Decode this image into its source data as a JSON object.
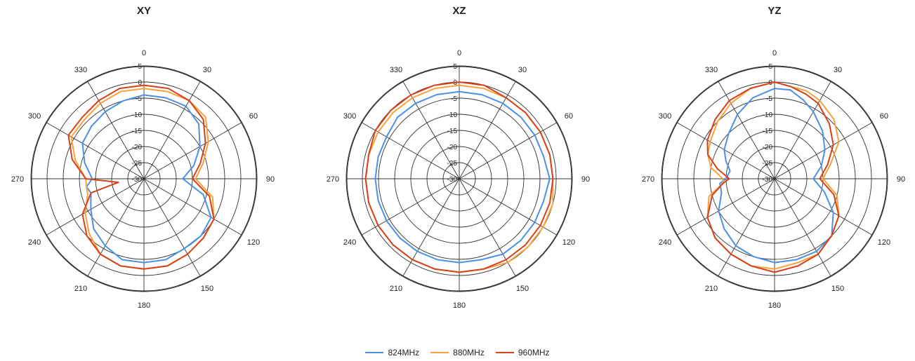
{
  "legend": [
    {
      "name": "824MHz",
      "color": "#4a90e8"
    },
    {
      "name": "880MHz",
      "color": "#f5a33a"
    },
    {
      "name": "960MHz",
      "color": "#d8401a"
    }
  ],
  "chart_data": [
    {
      "type": "polar",
      "title": "XY",
      "angle_ticks": [
        "0",
        "30",
        "60",
        "90",
        "120",
        "150",
        "180",
        "210",
        "240",
        "270",
        "300",
        "330"
      ],
      "radial_ticks": [
        "5",
        "0",
        "-5",
        "-10",
        "-15",
        "-20",
        "-25",
        "-30"
      ],
      "rlim": [
        -30,
        5
      ],
      "grid": true,
      "theta": [
        0,
        15,
        30,
        45,
        60,
        75,
        90,
        105,
        120,
        135,
        150,
        165,
        180,
        195,
        210,
        225,
        240,
        255,
        262,
        270,
        285,
        300,
        315,
        330,
        345
      ],
      "series": [
        {
          "name": "824MHz",
          "color": "#4a90e8",
          "values": [
            -4,
            -4,
            -4,
            -6,
            -10,
            -14,
            -18,
            -11,
            -6,
            -5,
            -5,
            -4,
            -4,
            -4,
            -6,
            -8,
            -11,
            -13,
            -12,
            -14,
            -11,
            -8,
            -7,
            -6,
            -5
          ]
        },
        {
          "name": "880MHz",
          "color": "#f5a33a",
          "values": [
            -2,
            -2,
            -2,
            -3,
            -7,
            -11,
            -14,
            -8,
            -5,
            -4,
            -3,
            -2,
            -2,
            -2,
            -3,
            -6,
            -9,
            -12,
            -12,
            -12,
            -8,
            -4,
            -4,
            -3,
            -2
          ]
        },
        {
          "name": "960MHz",
          "color": "#d8401a",
          "values": [
            -1,
            -1,
            -2,
            -4,
            -8,
            -12,
            -15,
            -9,
            -5,
            -4,
            -3,
            -2,
            -2,
            -2,
            -3,
            -5,
            -8,
            -13,
            -22,
            -12,
            -7,
            -3,
            -3,
            -2,
            -1
          ]
        }
      ]
    },
    {
      "type": "polar",
      "title": "XZ",
      "angle_ticks": [
        "0",
        "30",
        "60",
        "90",
        "120",
        "150",
        "180",
        "210",
        "240",
        "270",
        "300",
        "330"
      ],
      "radial_ticks": [
        "5",
        "0",
        "-5",
        "-10",
        "-15",
        "-20",
        "-25",
        "-30"
      ],
      "rlim": [
        -30,
        5
      ],
      "grid": true,
      "theta": [
        0,
        15,
        30,
        45,
        60,
        75,
        90,
        105,
        120,
        135,
        150,
        165,
        180,
        195,
        210,
        225,
        240,
        255,
        270,
        285,
        300,
        315,
        330,
        345
      ],
      "series": [
        {
          "name": "824MHz",
          "color": "#4a90e8",
          "values": [
            -3,
            -3,
            -3,
            -3,
            -3,
            -3,
            -2,
            -3,
            -3,
            -3,
            -3,
            -4,
            -4,
            -4,
            -4,
            -4,
            -4,
            -4,
            -4,
            -4,
            -4,
            -3,
            -3,
            -3
          ]
        },
        {
          "name": "880MHz",
          "color": "#f5a33a",
          "values": [
            -1,
            -1,
            -1,
            -1,
            -1,
            -1,
            -1,
            0,
            0,
            0,
            0,
            -1,
            -1,
            -1,
            -1,
            -1,
            -1,
            -1,
            -1,
            -1,
            -1,
            -1,
            -1,
            -1
          ]
        },
        {
          "name": "960MHz",
          "color": "#d8401a",
          "values": [
            0,
            0,
            -1,
            -1,
            -1,
            -1,
            -1,
            -1,
            -1,
            -1,
            -1,
            -1,
            -1,
            -1,
            -1,
            -1,
            -1,
            -1,
            -1,
            -1,
            0,
            0,
            0,
            0
          ]
        }
      ]
    },
    {
      "type": "polar",
      "title": "YZ",
      "angle_ticks": [
        "0",
        "30",
        "60",
        "90",
        "120",
        "150",
        "180",
        "210",
        "240",
        "270",
        "300",
        "330"
      ],
      "radial_ticks": [
        "5",
        "0",
        "-5",
        "-10",
        "-15",
        "-20",
        "-25",
        "-30"
      ],
      "rlim": [
        -30,
        5
      ],
      "grid": true,
      "theta": [
        0,
        10,
        20,
        30,
        45,
        60,
        75,
        90,
        105,
        120,
        135,
        150,
        165,
        180,
        195,
        210,
        225,
        240,
        255,
        265,
        270,
        280,
        290,
        300,
        315,
        330,
        345
      ],
      "series": [
        {
          "name": "824MHz",
          "color": "#4a90e8",
          "values": [
            -2,
            -2,
            -4,
            -6,
            -9,
            -12,
            -15,
            -18,
            -14,
            -9,
            -5,
            -4,
            -4,
            -4,
            -5,
            -6,
            -8,
            -10,
            -13,
            -13,
            -15,
            -16,
            -14,
            -12,
            -10,
            -7,
            -4
          ]
        },
        {
          "name": "880MHz",
          "color": "#f5a33a",
          "values": [
            0,
            -1,
            -1,
            -2,
            -4,
            -7,
            -12,
            -15,
            -10,
            -7,
            -5,
            -3,
            -3,
            -2,
            -2,
            -3,
            -4,
            -6,
            -9,
            -14,
            -14,
            -10,
            -8,
            -7,
            -5,
            -3,
            -1
          ]
        },
        {
          "name": "960MHz",
          "color": "#d8401a",
          "values": [
            0,
            -1,
            -2,
            -3,
            -6,
            -9,
            -13,
            -16,
            -11,
            -7,
            -5,
            -3,
            -2,
            -1,
            -2,
            -3,
            -4,
            -6,
            -10,
            -14,
            -16,
            -12,
            -8,
            -6,
            -4,
            -2,
            -1
          ]
        }
      ]
    }
  ]
}
